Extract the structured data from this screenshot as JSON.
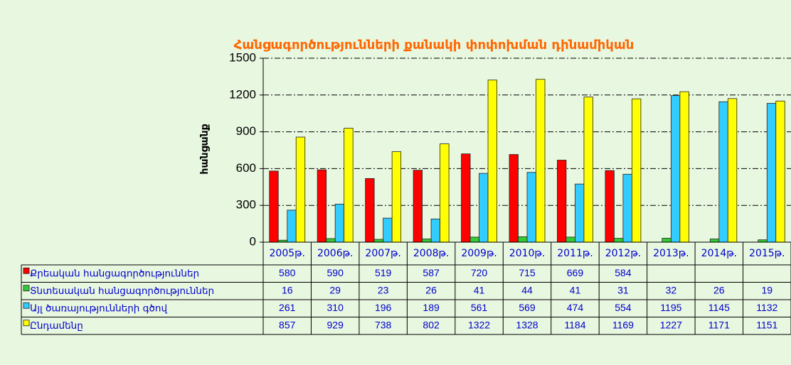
{
  "chart_data": {
    "type": "bar",
    "title": "Հանցագործությունների քանակի փոփոխման դինամիկան",
    "y_label": "հանցանք",
    "categories": [
      "2005թ.",
      "2006թ.",
      "2007թ.",
      "2008թ.",
      "2009թ.",
      "2010թ.",
      "2011թ.",
      "2012թ.",
      "2013թ.",
      "2014թ.",
      "2015թ."
    ],
    "series": [
      {
        "name": "Քրեական հանցագործություններ",
        "color": "#ff0000",
        "values": [
          580,
          590,
          519,
          587,
          720,
          715,
          669,
          584,
          null,
          null,
          null
        ]
      },
      {
        "name": "Տնտեսական հանցագործություններ",
        "color": "#33cc33",
        "values": [
          16,
          29,
          23,
          26,
          41,
          44,
          41,
          31,
          32,
          26,
          19
        ]
      },
      {
        "name": "Այլ ծառայությունների գծով",
        "color": "#33ccff",
        "values": [
          261,
          310,
          196,
          189,
          561,
          569,
          474,
          554,
          1195,
          1145,
          1132
        ]
      },
      {
        "name": "Ընդամենը",
        "color": "#ffff00",
        "values": [
          857,
          929,
          738,
          802,
          1322,
          1328,
          1184,
          1169,
          1227,
          1171,
          1151
        ]
      }
    ],
    "ylim": [
      0,
      1500
    ],
    "yticks": [
      0,
      300,
      600,
      900,
      1200,
      1500
    ],
    "grid": true
  }
}
